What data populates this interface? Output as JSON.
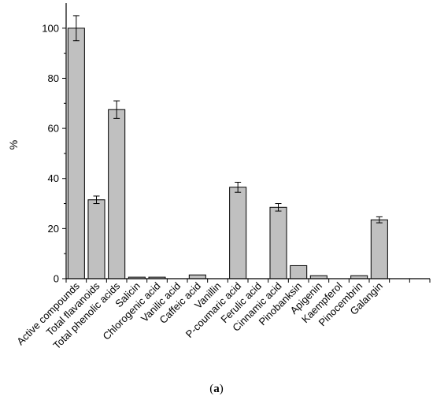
{
  "chart_data": {
    "type": "bar",
    "ylabel": "%",
    "xlabel": "",
    "ylim": [
      0,
      110
    ],
    "yticks": [
      0,
      20,
      40,
      60,
      80,
      100
    ],
    "grid": false,
    "bar_color": "#c0c0c0",
    "categories": [
      "Active compounds",
      "Total flavanoids",
      "Total phenolic acids",
      "Salicin",
      "Chlorogenic acid",
      "Vanilic acid",
      "Caffeic acid",
      "Vanillin",
      "P-coumaric acid",
      "Ferulic acid",
      "Cinnamic acid",
      "Pinobanksin",
      "Apigenin",
      "Kaempferol",
      "Pinocembrin",
      "Galangin"
    ],
    "values": [
      100,
      31.5,
      67.5,
      0.6,
      0.6,
      0,
      1.5,
      0,
      36.5,
      0,
      28.5,
      5.2,
      1.2,
      0,
      1.2,
      23.5
    ],
    "errors": [
      5,
      1.5,
      3.5,
      0,
      0,
      0,
      0,
      0,
      2,
      0,
      1.5,
      0,
      0,
      0,
      0,
      1.2
    ]
  },
  "caption": {
    "open": "(",
    "label": "a",
    "close": ")"
  }
}
